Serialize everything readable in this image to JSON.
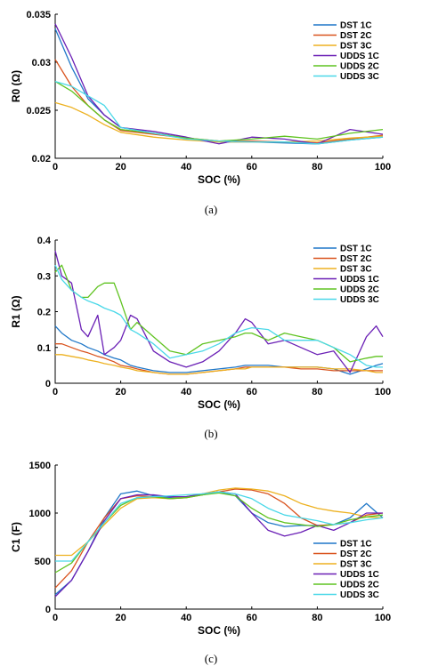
{
  "colors": {
    "DST 1C": "#1f77c8",
    "DST 2C": "#d9531e",
    "DST 3C": "#edb120",
    "UDDS 1C": "#6a1fb5",
    "UDDS 2C": "#5fc320",
    "UDDS 3C": "#4ad8e8"
  },
  "chart_data": [
    {
      "type": "line",
      "caption": "(a)",
      "xlabel": "SOC (%)",
      "ylabel": "R0 (Ω)",
      "xlim": [
        0,
        100
      ],
      "ylim": [
        0.02,
        0.035
      ],
      "xticks": [
        "0",
        "20",
        "40",
        "60",
        "80",
        "100"
      ],
      "yticks": [
        "0.02",
        "0.025",
        "0.03",
        "0.035"
      ],
      "legend": "top-right",
      "x": [
        0,
        5,
        10,
        15,
        20,
        30,
        40,
        50,
        60,
        70,
        80,
        90,
        100
      ],
      "series": [
        {
          "name": "DST 1C",
          "values": [
            0.0335,
            0.0295,
            0.0262,
            0.0245,
            0.0232,
            0.0226,
            0.0221,
            0.0217,
            0.0217,
            0.0216,
            0.0215,
            0.0219,
            0.0222
          ]
        },
        {
          "name": "DST 2C",
          "values": [
            0.0303,
            0.0275,
            0.0255,
            0.024,
            0.0229,
            0.0225,
            0.0221,
            0.0218,
            0.0218,
            0.0217,
            0.0216,
            0.022,
            0.0224
          ]
        },
        {
          "name": "DST 3C",
          "values": [
            0.0258,
            0.0253,
            0.0245,
            0.0235,
            0.0227,
            0.0222,
            0.0219,
            0.0217,
            0.0217,
            0.0217,
            0.0218,
            0.0221,
            0.0223
          ]
        },
        {
          "name": "UDDS 1C",
          "values": [
            0.034,
            0.0305,
            0.0265,
            0.0245,
            0.0232,
            0.0228,
            0.0222,
            0.0215,
            0.0222,
            0.022,
            0.0215,
            0.023,
            0.0225
          ]
        },
        {
          "name": "UDDS 2C",
          "values": [
            0.028,
            0.027,
            0.0255,
            0.024,
            0.023,
            0.0226,
            0.0221,
            0.0218,
            0.022,
            0.0223,
            0.022,
            0.0226,
            0.023
          ]
        },
        {
          "name": "UDDS 3C",
          "values": [
            0.028,
            0.0275,
            0.0265,
            0.0255,
            0.0232,
            0.0226,
            0.022,
            0.0218,
            0.0217,
            0.0217,
            0.0215,
            0.0219,
            0.0222
          ]
        }
      ]
    },
    {
      "type": "line",
      "caption": "(b)",
      "xlabel": "SOC (%)",
      "ylabel": "R1 (Ω)",
      "xlim": [
        0,
        100
      ],
      "ylim": [
        0,
        0.4
      ],
      "xticks": [
        "0",
        "20",
        "40",
        "60",
        "80",
        "100"
      ],
      "yticks": [
        "0",
        "0.1",
        "0.2",
        "0.3",
        "0.4"
      ],
      "legend": "top-right",
      "x": [
        0,
        2,
        5,
        8,
        10,
        13,
        15,
        18,
        20,
        23,
        25,
        30,
        35,
        40,
        45,
        50,
        55,
        58,
        60,
        65,
        70,
        75,
        80,
        85,
        90,
        95,
        98,
        100
      ],
      "series": [
        {
          "name": "DST 1C",
          "values": [
            0.16,
            0.14,
            0.12,
            0.11,
            0.1,
            0.09,
            0.08,
            0.07,
            0.065,
            0.05,
            0.045,
            0.035,
            0.03,
            0.03,
            0.035,
            0.04,
            0.045,
            0.05,
            0.05,
            0.05,
            0.045,
            0.045,
            0.045,
            0.04,
            0.025,
            0.04,
            0.05,
            0.055
          ]
        },
        {
          "name": "DST 2C",
          "values": [
            0.11,
            0.11,
            0.1,
            0.09,
            0.085,
            0.075,
            0.07,
            0.06,
            0.05,
            0.045,
            0.04,
            0.03,
            0.025,
            0.025,
            0.03,
            0.035,
            0.04,
            0.045,
            0.045,
            0.045,
            0.045,
            0.04,
            0.04,
            0.035,
            0.035,
            0.035,
            0.035,
            0.035
          ]
        },
        {
          "name": "DST 3C",
          "values": [
            0.08,
            0.08,
            0.075,
            0.07,
            0.065,
            0.06,
            0.055,
            0.05,
            0.045,
            0.04,
            0.035,
            0.03,
            0.025,
            0.025,
            0.03,
            0.035,
            0.04,
            0.04,
            0.045,
            0.045,
            0.045,
            0.045,
            0.045,
            0.04,
            0.04,
            0.035,
            0.03,
            0.03
          ]
        },
        {
          "name": "UDDS 1C",
          "values": [
            0.37,
            0.3,
            0.28,
            0.15,
            0.13,
            0.19,
            0.08,
            0.1,
            0.12,
            0.19,
            0.18,
            0.09,
            0.06,
            0.045,
            0.06,
            0.09,
            0.14,
            0.18,
            0.17,
            0.11,
            0.12,
            0.1,
            0.08,
            0.09,
            0.03,
            0.13,
            0.16,
            0.13
          ]
        },
        {
          "name": "UDDS 2C",
          "values": [
            0.31,
            0.33,
            0.26,
            0.24,
            0.24,
            0.27,
            0.28,
            0.28,
            0.23,
            0.15,
            0.17,
            0.13,
            0.09,
            0.08,
            0.11,
            0.12,
            0.13,
            0.14,
            0.14,
            0.12,
            0.14,
            0.13,
            0.12,
            0.1,
            0.06,
            0.07,
            0.075,
            0.075
          ]
        },
        {
          "name": "UDDS 3C",
          "values": [
            0.33,
            0.29,
            0.26,
            0.24,
            0.23,
            0.22,
            0.21,
            0.2,
            0.19,
            0.15,
            0.14,
            0.11,
            0.07,
            0.08,
            0.09,
            0.11,
            0.14,
            0.15,
            0.155,
            0.15,
            0.12,
            0.12,
            0.12,
            0.1,
            0.08,
            0.05,
            0.045,
            0.045
          ]
        }
      ]
    },
    {
      "type": "line",
      "caption": "(c)",
      "xlabel": "SOC (%)",
      "ylabel": "C1 (F)",
      "xlim": [
        0,
        100
      ],
      "ylim": [
        0,
        1500
      ],
      "xticks": [
        "0",
        "20",
        "40",
        "60",
        "80",
        "100"
      ],
      "yticks": [
        "0",
        "500",
        "1000",
        "1500"
      ],
      "legend": "bottom-right",
      "x": [
        0,
        5,
        10,
        15,
        20,
        25,
        30,
        35,
        40,
        45,
        50,
        55,
        60,
        65,
        70,
        75,
        80,
        85,
        90,
        95,
        100
      ],
      "series": [
        {
          "name": "DST 1C",
          "values": [
            150,
            300,
            600,
            950,
            1200,
            1230,
            1180,
            1160,
            1170,
            1190,
            1220,
            1180,
            1000,
            900,
            860,
            870,
            870,
            880,
            950,
            1100,
            950
          ]
        },
        {
          "name": "DST 2C",
          "values": [
            220,
            400,
            700,
            950,
            1150,
            1180,
            1170,
            1150,
            1160,
            1190,
            1220,
            1250,
            1240,
            1200,
            1100,
            950,
            870,
            880,
            900,
            980,
            1000
          ]
        },
        {
          "name": "DST 3C",
          "values": [
            560,
            560,
            700,
            880,
            1050,
            1150,
            1160,
            1150,
            1170,
            1200,
            1240,
            1260,
            1250,
            1230,
            1180,
            1100,
            1050,
            1020,
            1000,
            960,
            950
          ]
        },
        {
          "name": "UDDS 1C",
          "values": [
            130,
            300,
            600,
            920,
            1150,
            1190,
            1190,
            1170,
            1170,
            1200,
            1220,
            1200,
            1000,
            820,
            760,
            800,
            870,
            820,
            900,
            1000,
            1000
          ]
        },
        {
          "name": "UDDS 2C",
          "values": [
            380,
            480,
            700,
            900,
            1080,
            1160,
            1170,
            1150,
            1160,
            1190,
            1210,
            1180,
            1050,
            950,
            900,
            880,
            860,
            880,
            930,
            960,
            980
          ]
        },
        {
          "name": "UDDS 3C",
          "values": [
            500,
            500,
            700,
            900,
            1100,
            1160,
            1170,
            1180,
            1190,
            1200,
            1220,
            1200,
            1150,
            1050,
            980,
            950,
            920,
            880,
            900,
            930,
            950
          ]
        }
      ]
    }
  ]
}
